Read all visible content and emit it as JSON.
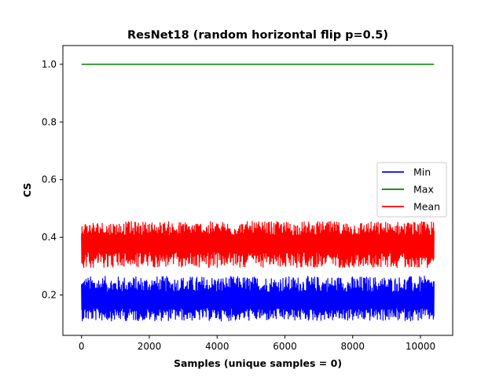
{
  "chart_data": {
    "type": "line",
    "title": "ResNet18 (random horizontal flip p=0.5)",
    "xlabel": "Samples (unique samples = 0)",
    "ylabel": "CS",
    "xlim": [
      -550,
      10950
    ],
    "ylim": [
      0.06,
      1.065
    ],
    "x_ticks": [
      0,
      2000,
      4000,
      6000,
      8000,
      10000
    ],
    "y_ticks": [
      0.2,
      0.4,
      0.6,
      0.8,
      1.0
    ],
    "x_range": [
      0,
      10400
    ],
    "grid": false,
    "legend_position": "center-right",
    "series": [
      {
        "name": "Min",
        "color": "#0000ff",
        "center": 0.18,
        "band_low": 0.11,
        "band_high": 0.265
      },
      {
        "name": "Max",
        "color": "#008000",
        "constant": 1.0
      },
      {
        "name": "Mean",
        "color": "#ff0000",
        "center": 0.38,
        "band_low": 0.295,
        "band_high": 0.455
      }
    ]
  }
}
